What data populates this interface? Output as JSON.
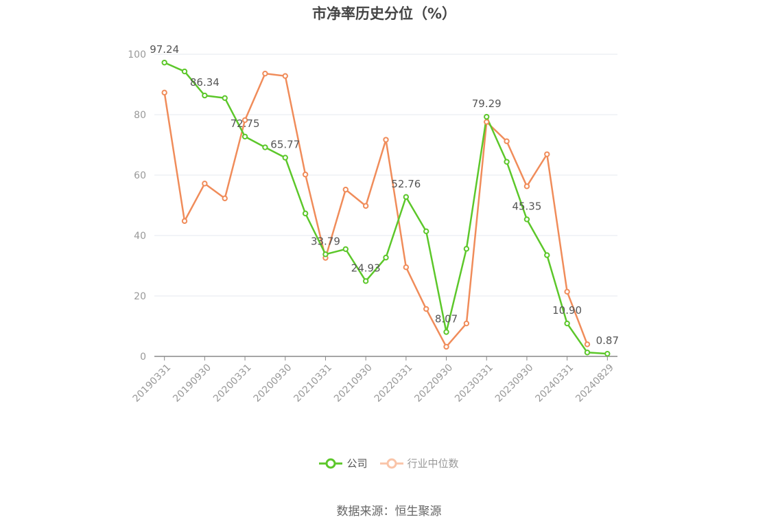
{
  "chart_data": {
    "type": "line",
    "title": "市净率历史分位（%）",
    "ylim": [
      0,
      100
    ],
    "yticks": [
      0,
      20,
      40,
      60,
      80,
      100
    ],
    "grid": true,
    "legend_position": "bottom",
    "x": [
      "20190331",
      "20190630",
      "20190930",
      "20191231",
      "20200331",
      "20200630",
      "20200930",
      "20201231",
      "20210331",
      "20210630",
      "20210930",
      "20211231",
      "20220331",
      "20220630",
      "20220930",
      "20221231",
      "20230331",
      "20230630",
      "20230930",
      "20231231",
      "20240331",
      "20240630",
      "20240829"
    ],
    "xtick_labels": [
      "20190331",
      "20190930",
      "20200331",
      "20200930",
      "20210331",
      "20210930",
      "20220331",
      "20220930",
      "20230331",
      "20230930",
      "20240331",
      "20240829"
    ],
    "series": [
      {
        "name": "公司",
        "color": "#5cc72a",
        "values": [
          97.24,
          94.3,
          86.34,
          85.5,
          72.75,
          69.2,
          65.77,
          47.3,
          33.79,
          35.5,
          24.93,
          32.7,
          52.76,
          41.4,
          8.07,
          35.6,
          79.29,
          64.4,
          45.35,
          33.5,
          10.9,
          1.3,
          0.87
        ],
        "labels": {
          "0": "97.24",
          "2": "86.34",
          "4": "72.75",
          "6": "65.77",
          "8": "33.79",
          "10": "24.93",
          "12": "52.76",
          "14": "8.07",
          "16": "79.29",
          "18": "45.35",
          "20": "10.90",
          "22": "0.87"
        }
      },
      {
        "name": "行业中位数",
        "color": "#f08c5a",
        "values": [
          87.3,
          44.8,
          57.2,
          52.3,
          78.2,
          93.6,
          92.8,
          60.2,
          32.6,
          55.2,
          49.8,
          71.7,
          29.5,
          15.7,
          3.2,
          10.9,
          77.6,
          71.2,
          56.3,
          66.9,
          21.4,
          4.0,
          null
        ]
      }
    ]
  },
  "source_text": "数据来源：恒生聚源"
}
